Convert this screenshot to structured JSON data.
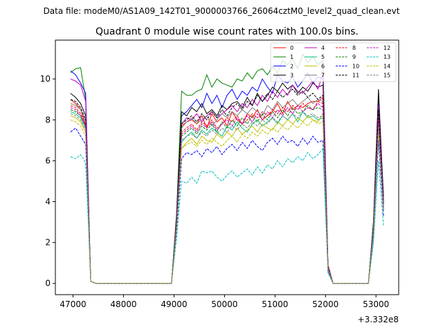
{
  "chart_data": {
    "type": "line",
    "suptitle": "Data file: modeM0/AS1A09_142T01_9000003766_26064cztM0_level2_quad_clean.evt",
    "title": "Quadrant 0 module wise count rates with 100.0s bins.",
    "xlabel": "",
    "ylabel": "",
    "x_offset_text": "+3.332e8",
    "xlim": [
      46650,
      53450
    ],
    "ylim": [
      -0.55,
      11.9
    ],
    "xticks": [
      47000,
      48000,
      49000,
      50000,
      51000,
      52000,
      53000
    ],
    "xtick_labels": [
      "47000",
      "48000",
      "49000",
      "50000",
      "51000",
      "52000",
      "53000"
    ],
    "yticks": [
      0,
      2,
      4,
      6,
      8,
      10
    ],
    "ytick_labels": [
      "0",
      "2",
      "4",
      "6",
      "8",
      "10"
    ],
    "grid": false,
    "legend_location": "top-right",
    "x": [
      46950,
      47050,
      47150,
      47250,
      47350,
      47450,
      47550,
      47650,
      47750,
      47850,
      47950,
      48050,
      48150,
      48250,
      48350,
      48450,
      48550,
      48650,
      48750,
      48850,
      48950,
      49050,
      49150,
      49250,
      49350,
      49450,
      49550,
      49650,
      49750,
      49850,
      49950,
      50050,
      50150,
      50250,
      50350,
      50450,
      50550,
      50650,
      50750,
      50850,
      50950,
      51050,
      51150,
      51250,
      51350,
      51450,
      51550,
      51650,
      51750,
      51850,
      51950,
      52050,
      52150,
      52250,
      52350,
      52450,
      52550,
      52650,
      52750,
      52850,
      52950,
      53050,
      53150
    ],
    "series": [
      {
        "name": "0",
        "color": "#ff0000",
        "dash": "solid",
        "values": [
          9.0,
          8.8,
          8.5,
          7.7,
          0.1,
          0,
          0,
          0,
          0,
          0,
          0,
          0,
          0,
          0,
          0,
          0,
          0,
          0,
          0,
          0,
          0,
          3.0,
          7.7,
          7.9,
          8.0,
          7.8,
          8.2,
          7.6,
          8.3,
          7.9,
          8.1,
          7.7,
          8.4,
          8.0,
          7.8,
          8.3,
          8.1,
          8.5,
          8.0,
          8.2,
          8.4,
          8.8,
          8.3,
          8.9,
          8.5,
          8.7,
          8.6,
          8.8,
          8.9,
          8.9,
          9.1,
          0.8,
          0,
          0,
          0,
          0,
          0,
          0,
          0,
          0,
          2.5,
          7.8,
          3.8
        ]
      },
      {
        "name": "1",
        "color": "#008000",
        "dash": "solid",
        "values": [
          10.3,
          10.5,
          10.55,
          9.0,
          0.1,
          0,
          0,
          0,
          0,
          0,
          0,
          0,
          0,
          0,
          0,
          0,
          0,
          0,
          0,
          0,
          0,
          3.4,
          9.4,
          9.2,
          9.2,
          9.4,
          9.5,
          10.2,
          9.6,
          10.0,
          9.8,
          9.7,
          9.6,
          10.0,
          9.9,
          10.3,
          10.0,
          10.4,
          10.5,
          10.2,
          10.6,
          10.3,
          10.9,
          10.7,
          11.0,
          10.5,
          11.2,
          10.8,
          11.1,
          10.7,
          10.9,
          0.9,
          0,
          0,
          0,
          0,
          0,
          0,
          0,
          0,
          3.0,
          9.0,
          4.3
        ]
      },
      {
        "name": "2",
        "color": "#0000ff",
        "dash": "solid",
        "values": [
          10.4,
          10.2,
          9.8,
          9.3,
          0.1,
          0,
          0,
          0,
          0,
          0,
          0,
          0,
          0,
          0,
          0,
          0,
          0,
          0,
          0,
          0,
          0,
          3.2,
          8.2,
          8.4,
          8.7,
          9.0,
          8.6,
          9.3,
          8.8,
          9.2,
          8.6,
          9.2,
          9.5,
          9.0,
          9.4,
          9.2,
          9.6,
          9.4,
          10.0,
          9.6,
          9.3,
          10.2,
          9.9,
          9.8,
          10.1,
          9.6,
          9.9,
          10.3,
          9.8,
          10.1,
          10.0,
          0.8,
          0,
          0,
          0,
          0,
          0,
          0,
          0,
          0,
          2.9,
          8.8,
          4.2
        ]
      },
      {
        "name": "3",
        "color": "#000000",
        "dash": "solid",
        "values": [
          9.3,
          9.1,
          8.8,
          8.2,
          0.1,
          0,
          0,
          0,
          0,
          0,
          0,
          0,
          0,
          0,
          0,
          0,
          0,
          0,
          0,
          0,
          0,
          3.3,
          8.4,
          8.2,
          8.6,
          8.4,
          8.8,
          8.3,
          8.5,
          8.2,
          8.7,
          8.5,
          8.8,
          8.9,
          8.6,
          9.1,
          8.7,
          9.3,
          8.9,
          9.2,
          9.6,
          9.4,
          9.8,
          9.5,
          9.7,
          9.3,
          9.6,
          9.4,
          9.8,
          9.6,
          9.7,
          0.8,
          0,
          0,
          0,
          0,
          0,
          0,
          0,
          0,
          3.0,
          9.5,
          4.0
        ]
      },
      {
        "name": "4",
        "color": "#bf00bf",
        "dash": "solid",
        "values": [
          10.0,
          9.9,
          9.7,
          8.9,
          0.1,
          0,
          0,
          0,
          0,
          0,
          0,
          0,
          0,
          0,
          0,
          0,
          0,
          0,
          0,
          0,
          0,
          3.1,
          7.8,
          8.1,
          8.0,
          8.3,
          7.9,
          8.2,
          8.4,
          8.1,
          8.3,
          8.5,
          8.7,
          8.4,
          8.8,
          8.6,
          9.0,
          8.7,
          9.2,
          8.9,
          9.4,
          9.1,
          9.5,
          9.2,
          9.7,
          9.4,
          9.3,
          9.6,
          9.9,
          9.5,
          10.3,
          0.9,
          0,
          0,
          0,
          0,
          0,
          0,
          0,
          0,
          2.8,
          8.7,
          4.1
        ]
      },
      {
        "name": "5",
        "color": "#00bf7f",
        "dash": "solid",
        "values": [
          8.4,
          8.3,
          8.1,
          7.6,
          0.1,
          0,
          0,
          0,
          0,
          0,
          0,
          0,
          0,
          0,
          0,
          0,
          0,
          0,
          0,
          0,
          0,
          2.8,
          6.9,
          7.2,
          7.4,
          7.1,
          7.5,
          7.3,
          7.6,
          7.4,
          7.2,
          7.7,
          7.5,
          7.9,
          7.6,
          7.4,
          7.8,
          8.0,
          7.7,
          7.9,
          8.1,
          7.8,
          8.2,
          8.0,
          8.3,
          7.9,
          8.4,
          8.1,
          8.2,
          8.0,
          8.1,
          0.7,
          0,
          0,
          0,
          0,
          0,
          0,
          0,
          0,
          2.6,
          7.9,
          3.6
        ]
      },
      {
        "name": "6",
        "color": "#bfbf00",
        "dash": "solid",
        "values": [
          8.2,
          8.1,
          7.9,
          7.4,
          0.1,
          0,
          0,
          0,
          0,
          0,
          0,
          0,
          0,
          0,
          0,
          0,
          0,
          0,
          0,
          0,
          0,
          2.7,
          6.6,
          6.9,
          7.1,
          6.8,
          7.2,
          7.0,
          6.9,
          7.3,
          7.1,
          7.4,
          7.2,
          7.6,
          7.3,
          7.5,
          7.7,
          7.4,
          7.8,
          7.6,
          7.5,
          7.9,
          7.7,
          8.0,
          7.8,
          8.1,
          7.9,
          8.2,
          8.0,
          7.9,
          8.3,
          0.7,
          0,
          0,
          0,
          0,
          0,
          0,
          0,
          0,
          2.5,
          7.6,
          3.5
        ]
      },
      {
        "name": "7",
        "color": "#808080",
        "dash": "solid",
        "values": [
          8.8,
          8.7,
          8.5,
          7.9,
          0.1,
          0,
          0,
          0,
          0,
          0,
          0,
          0,
          0,
          0,
          0,
          0,
          0,
          0,
          0,
          0,
          0,
          3.0,
          7.6,
          7.9,
          8.1,
          7.8,
          8.0,
          8.2,
          7.7,
          8.0,
          8.3,
          8.1,
          8.4,
          8.2,
          8.5,
          8.3,
          8.6,
          8.4,
          8.2,
          8.7,
          8.5,
          8.9,
          8.6,
          8.8,
          9.0,
          8.7,
          8.9,
          9.1,
          8.8,
          9.0,
          8.9,
          0.8,
          0,
          0,
          0,
          0,
          0,
          0,
          0,
          0,
          2.7,
          8.2,
          3.9
        ]
      },
      {
        "name": "8",
        "color": "#ff0000",
        "dash": "dashed",
        "values": [
          8.7,
          8.6,
          8.3,
          7.8,
          0.1,
          0,
          0,
          0,
          0,
          0,
          0,
          0,
          0,
          0,
          0,
          0,
          0,
          0,
          0,
          0,
          0,
          2.9,
          7.4,
          7.6,
          7.8,
          7.5,
          7.9,
          7.7,
          8.0,
          7.6,
          7.8,
          8.1,
          7.9,
          8.2,
          7.8,
          8.0,
          8.3,
          8.1,
          8.4,
          8.2,
          8.5,
          8.3,
          8.6,
          8.4,
          8.7,
          8.5,
          8.8,
          8.6,
          8.5,
          8.9,
          8.8,
          0.8,
          0,
          0,
          0,
          0,
          0,
          0,
          0,
          0,
          2.6,
          8.0,
          3.7
        ]
      },
      {
        "name": "9",
        "color": "#008000",
        "dash": "dashed",
        "values": [
          8.5,
          8.4,
          8.2,
          7.7,
          0.1,
          0,
          0,
          0,
          0,
          0,
          0,
          0,
          0,
          0,
          0,
          0,
          0,
          0,
          0,
          0,
          0,
          2.8,
          7.2,
          7.4,
          7.6,
          7.3,
          7.7,
          7.5,
          7.8,
          7.4,
          7.9,
          7.6,
          8.0,
          7.7,
          8.1,
          7.8,
          8.2,
          7.9,
          8.3,
          8.0,
          8.4,
          8.1,
          8.5,
          8.2,
          8.6,
          8.3,
          8.4,
          8.7,
          8.5,
          8.6,
          8.5,
          0.7,
          0,
          0,
          0,
          0,
          0,
          0,
          0,
          0,
          2.6,
          7.8,
          3.6
        ]
      },
      {
        "name": "10",
        "color": "#0000ff",
        "dash": "dashed",
        "values": [
          7.4,
          7.6,
          7.2,
          6.8,
          0.1,
          0,
          0,
          0,
          0,
          0,
          0,
          0,
          0,
          0,
          0,
          0,
          0,
          0,
          0,
          0,
          0,
          2.5,
          6.1,
          6.4,
          6.3,
          6.5,
          6.2,
          6.6,
          6.4,
          6.7,
          6.3,
          6.6,
          6.8,
          6.5,
          6.9,
          6.6,
          7.0,
          6.7,
          6.5,
          6.9,
          7.1,
          6.8,
          7.2,
          6.9,
          7.0,
          6.7,
          7.1,
          6.8,
          7.2,
          6.9,
          7.0,
          0.6,
          0,
          0,
          0,
          0,
          0,
          0,
          0,
          0,
          2.3,
          7.0,
          3.3
        ]
      },
      {
        "name": "11",
        "color": "#000000",
        "dash": "dashed",
        "values": [
          9.0,
          8.9,
          8.6,
          8.0,
          0.1,
          0,
          0,
          0,
          0,
          0,
          0,
          0,
          0,
          0,
          0,
          0,
          0,
          0,
          0,
          0,
          0,
          3.0,
          7.8,
          8.0,
          8.2,
          7.9,
          8.3,
          8.0,
          8.4,
          8.1,
          8.5,
          8.2,
          8.6,
          8.8,
          8.5,
          8.9,
          8.7,
          9.2,
          8.9,
          9.3,
          9.0,
          9.4,
          9.1,
          9.3,
          9.5,
          9.2,
          9.4,
          9.1,
          9.3,
          9.0,
          9.2,
          0.8,
          0,
          0,
          0,
          0,
          0,
          0,
          0,
          0,
          2.8,
          8.5,
          3.9
        ]
      },
      {
        "name": "12",
        "color": "#bf00bf",
        "dash": "dashed",
        "values": [
          8.6,
          8.5,
          8.2,
          7.7,
          0.1,
          0,
          0,
          0,
          0,
          0,
          0,
          0,
          0,
          0,
          0,
          0,
          0,
          0,
          0,
          0,
          0,
          2.9,
          7.3,
          7.5,
          7.7,
          7.4,
          7.8,
          7.6,
          7.9,
          7.5,
          7.8,
          8.0,
          7.7,
          8.1,
          7.8,
          8.2,
          7.9,
          8.3,
          8.0,
          8.4,
          8.1,
          8.5,
          8.2,
          8.6,
          8.3,
          8.7,
          8.4,
          8.6,
          8.5,
          8.8,
          8.6,
          0.7,
          0,
          0,
          0,
          0,
          0,
          0,
          0,
          0,
          2.6,
          7.9,
          3.7
        ]
      },
      {
        "name": "13",
        "color": "#00bfbf",
        "dash": "dashed",
        "values": [
          6.2,
          6.1,
          6.3,
          5.9,
          0.1,
          0,
          0,
          0,
          0,
          0,
          0,
          0,
          0,
          0,
          0,
          0,
          0,
          0,
          0,
          0,
          0,
          2.2,
          5.0,
          4.9,
          5.2,
          4.9,
          5.5,
          5.4,
          5.5,
          5.2,
          5.0,
          5.3,
          5.5,
          5.2,
          5.4,
          5.6,
          5.3,
          5.7,
          5.4,
          5.8,
          5.6,
          6.0,
          5.7,
          6.1,
          5.9,
          6.2,
          6.0,
          6.4,
          6.1,
          6.3,
          6.6,
          0.5,
          0,
          0,
          0,
          0,
          0,
          0,
          0,
          0,
          2.0,
          6.0,
          2.8
        ]
      },
      {
        "name": "14",
        "color": "#bfbf00",
        "dash": "dashed",
        "values": [
          8.0,
          7.9,
          7.7,
          7.2,
          0.1,
          0,
          0,
          0,
          0,
          0,
          0,
          0,
          0,
          0,
          0,
          0,
          0,
          0,
          0,
          0,
          0,
          2.7,
          6.6,
          6.8,
          6.9,
          6.7,
          7.0,
          6.8,
          7.1,
          6.9,
          6.7,
          7.0,
          7.2,
          6.9,
          7.3,
          7.1,
          7.4,
          7.2,
          7.5,
          7.3,
          7.6,
          7.4,
          7.7,
          7.5,
          7.8,
          7.6,
          7.9,
          7.7,
          8.0,
          7.8,
          7.9,
          0.7,
          0,
          0,
          0,
          0,
          0,
          0,
          0,
          0,
          2.5,
          7.4,
          3.5
        ]
      },
      {
        "name": "15",
        "color": "#808080",
        "dash": "dashed",
        "values": [
          8.3,
          8.2,
          8.0,
          7.5,
          0.1,
          0,
          0,
          0,
          0,
          0,
          0,
          0,
          0,
          0,
          0,
          0,
          0,
          0,
          0,
          0,
          0,
          2.8,
          7.0,
          7.2,
          7.3,
          7.1,
          7.4,
          7.2,
          7.5,
          7.3,
          7.6,
          7.4,
          7.7,
          7.5,
          7.8,
          7.6,
          7.9,
          7.7,
          8.0,
          7.8,
          8.1,
          7.9,
          8.2,
          8.0,
          8.3,
          8.1,
          8.4,
          8.2,
          8.3,
          8.1,
          8.2,
          0.7,
          0,
          0,
          0,
          0,
          0,
          0,
          0,
          0,
          2.6,
          7.7,
          3.6
        ]
      }
    ]
  }
}
